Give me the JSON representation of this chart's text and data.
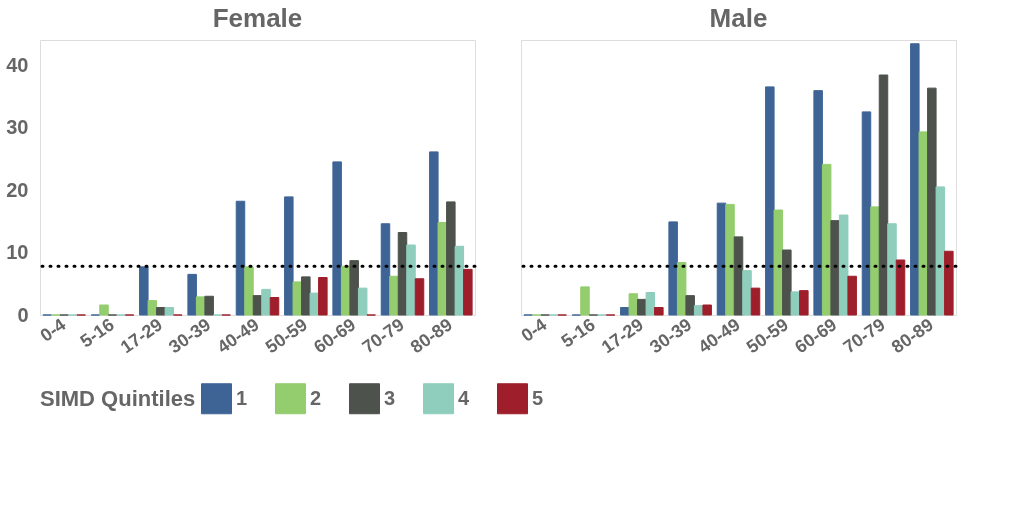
{
  "chart_data": [
    {
      "type": "bar",
      "title": "Female",
      "categories": [
        "0-4",
        "5-16",
        "17-29",
        "30-39",
        "40-49",
        "50-59",
        "60-69",
        "70-79",
        "80-89"
      ],
      "legend_title": "SIMD Quintiles",
      "legend": "bottom",
      "grid": false,
      "ylim": [
        0,
        44
      ],
      "yticks": [
        0,
        10,
        20,
        30,
        40
      ],
      "series": [
        {
          "name": "1",
          "color": "#3e6496",
          "values": [
            0,
            0,
            7.7,
            6.5,
            18.2,
            18.9,
            24.5,
            14.6,
            26.1
          ]
        },
        {
          "name": "2",
          "color": "#93cd6e",
          "values": [
            0,
            1.6,
            2.3,
            2.9,
            7.7,
            5.3,
            7.8,
            6.2,
            14.8
          ]
        },
        {
          "name": "3",
          "color": "#4d524d",
          "values": [
            0,
            0,
            1.2,
            3.0,
            3.1,
            6.1,
            8.7,
            13.2,
            18.1
          ]
        },
        {
          "name": "4",
          "color": "#8fcdbd",
          "values": [
            0,
            0,
            1.2,
            0,
            4.1,
            3.5,
            4.3,
            11.2,
            11.0
          ]
        },
        {
          "name": "5",
          "color": "#9e1f2b",
          "values": [
            0,
            0,
            0,
            0,
            2.8,
            6.0,
            0,
            5.8,
            7.3
          ]
        }
      ],
      "ref_lines": [
        {
          "axis": "y",
          "value": 7.8,
          "line_style": "dotted",
          "color": "#000000"
        }
      ]
    },
    {
      "type": "bar",
      "title": "Male",
      "categories": [
        "0-4",
        "5-16",
        "17-29",
        "30-39",
        "40-49",
        "50-59",
        "60-69",
        "70-79",
        "80-89"
      ],
      "grid": false,
      "ylim": [
        0,
        44
      ],
      "yticks": [
        0,
        10,
        20,
        30,
        40
      ],
      "tick_labels": "x",
      "series": [
        {
          "name": "1",
          "color": "#3e6496",
          "values": [
            0,
            0,
            1.2,
            14.9,
            17.9,
            36.5,
            35.9,
            32.5,
            43.4
          ]
        },
        {
          "name": "2",
          "color": "#93cd6e",
          "values": [
            0,
            4.5,
            3.4,
            8.4,
            17.7,
            16.8,
            24.1,
            17.3,
            29.3
          ]
        },
        {
          "name": "3",
          "color": "#4d524d",
          "values": [
            0,
            0,
            2.5,
            3.1,
            12.5,
            10.4,
            15.1,
            38.4,
            36.3
          ]
        },
        {
          "name": "4",
          "color": "#8fcdbd",
          "values": [
            0,
            0,
            3.6,
            1.5,
            7.1,
            3.7,
            16.0,
            14.6,
            20.5
          ]
        },
        {
          "name": "5",
          "color": "#9e1f2b",
          "values": [
            0,
            0,
            1.2,
            1.6,
            4.3,
            3.9,
            6.2,
            8.8,
            10.2
          ]
        }
      ],
      "ref_lines": [
        {
          "axis": "y",
          "value": 7.8,
          "line_style": "dotted",
          "color": "#000000"
        }
      ]
    }
  ]
}
